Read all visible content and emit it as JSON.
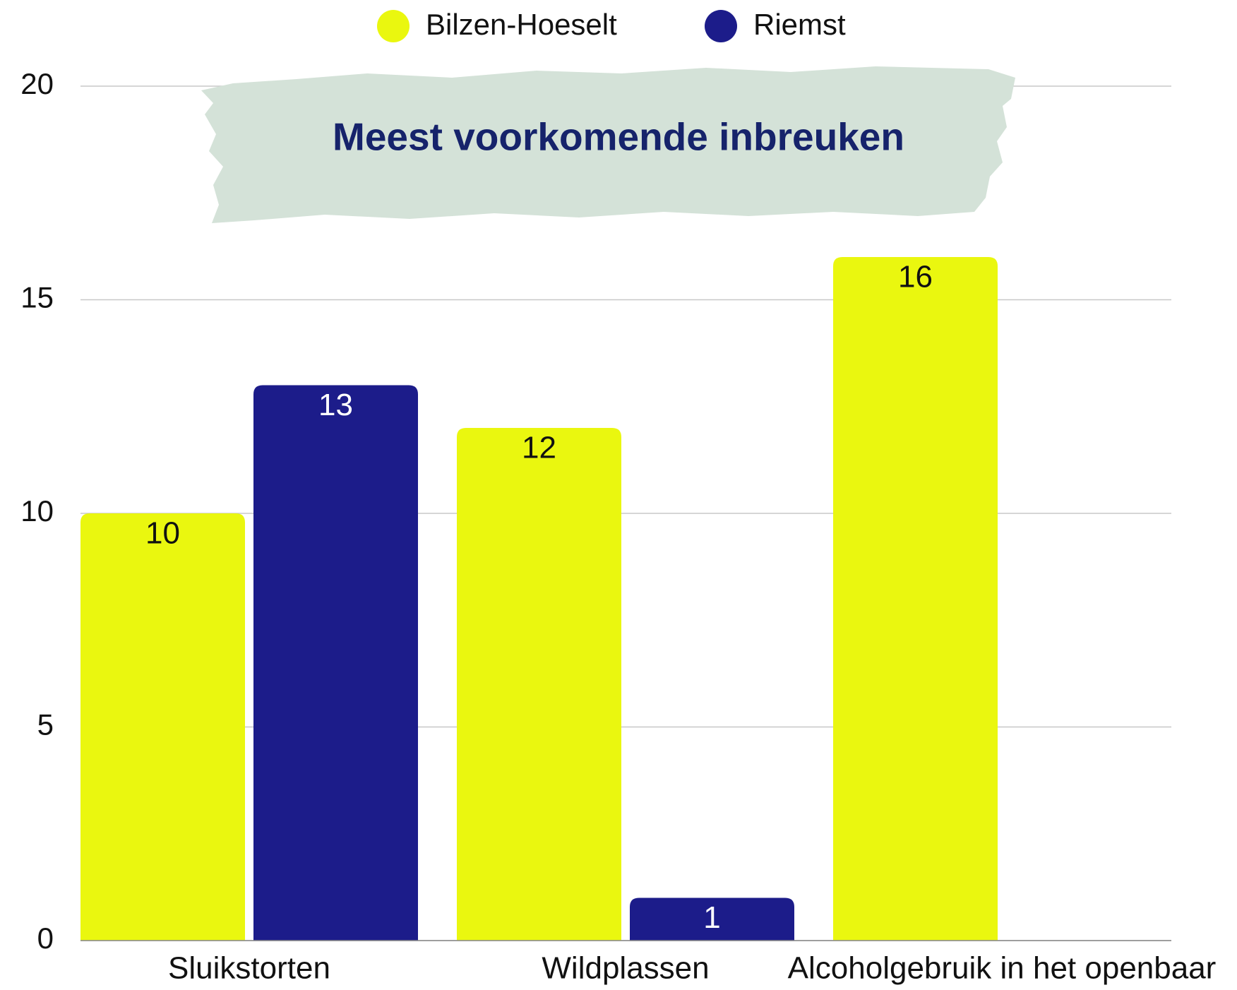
{
  "chart_data": {
    "type": "bar",
    "title": "Meest voorkomende inbreuken",
    "categories": [
      "Sluikstorten",
      "Wildplassen",
      "Alcoholgebruik in het openbaar"
    ],
    "series": [
      {
        "name": "Bilzen-Hoeselt",
        "color": "#eaf70f",
        "values": [
          10,
          12,
          16
        ]
      },
      {
        "name": "Riemst",
        "color": "#1c1c8a",
        "values": [
          13,
          1,
          null
        ]
      }
    ],
    "ylim": [
      0,
      20
    ],
    "yticks": [
      0,
      5,
      10,
      15,
      20
    ],
    "grid": true,
    "legend": "top"
  }
}
